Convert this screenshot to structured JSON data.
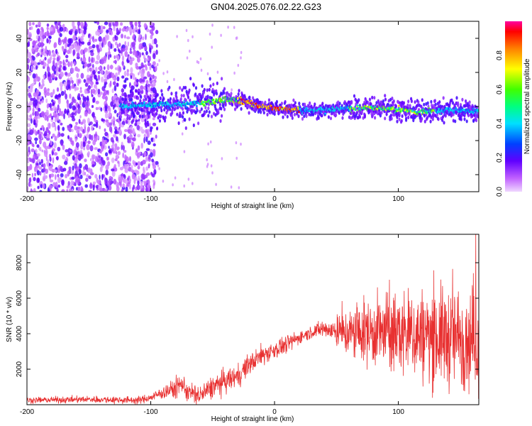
{
  "title": "GN04.2025.076.02.22.G23",
  "colors": {
    "snr_line": "#e83030",
    "scatter_noise": "#7a00e0",
    "frame": "#000000"
  },
  "chart_data": [
    {
      "type": "heatmap",
      "xlabel": "Height of straight line (km)",
      "ylabel": "Frequency (Hz)",
      "xlim": [
        -200,
        165
      ],
      "ylim": [
        -50,
        50
      ],
      "xticks": [
        -200,
        -100,
        0,
        100
      ],
      "yticks": [
        -40,
        -20,
        0,
        20,
        40
      ],
      "colorbar": {
        "label": "Normalized spectral amplitude",
        "range": [
          0,
          1
        ],
        "ticks": [
          "0.0",
          "0.2",
          "0.4",
          "0.6",
          "0.8"
        ],
        "tick_values": [
          0,
          0.2,
          0.4,
          0.6,
          0.8
        ],
        "colormap": "rainbow (magenta-blue-cyan-green-yellow-red)"
      },
      "ridge": {
        "points": [
          [
            -120,
            0
          ],
          [
            -100,
            1
          ],
          [
            -80,
            1
          ],
          [
            -60,
            2
          ],
          [
            -40,
            4
          ],
          [
            -25,
            3
          ],
          [
            -10,
            0
          ],
          [
            0,
            -1
          ],
          [
            20,
            -2
          ],
          [
            40,
            -2
          ],
          [
            60,
            -1
          ],
          [
            80,
            -1
          ],
          [
            100,
            -2
          ],
          [
            120,
            -3
          ],
          [
            140,
            -2
          ],
          [
            165,
            -3
          ]
        ],
        "peak_amplitude_range": [
          -30,
          20
        ]
      },
      "noise_region_xmax": -110
    },
    {
      "type": "line",
      "xlabel": "Height of straight line (km)",
      "ylabel": "SNR (10 * v/v)",
      "xlim": [
        -200,
        165
      ],
      "ylim": [
        0,
        9600
      ],
      "xticks": [
        -200,
        -100,
        0,
        100
      ],
      "yticks": [
        2000,
        4000,
        6000,
        8000
      ],
      "envelope": [
        [
          -200,
          250
        ],
        [
          -150,
          300
        ],
        [
          -110,
          250
        ],
        [
          -100,
          400
        ],
        [
          -90,
          700
        ],
        [
          -80,
          900
        ],
        [
          -75,
          1200
        ],
        [
          -70,
          700
        ],
        [
          -60,
          500
        ],
        [
          -50,
          1000
        ],
        [
          -40,
          1300
        ],
        [
          -30,
          1600
        ],
        [
          -20,
          2300
        ],
        [
          -10,
          2800
        ],
        [
          0,
          3100
        ],
        [
          10,
          3400
        ],
        [
          20,
          3800
        ],
        [
          30,
          4100
        ],
        [
          40,
          4300
        ],
        [
          50,
          4100
        ],
        [
          60,
          4000
        ],
        [
          80,
          4100
        ],
        [
          100,
          4000
        ],
        [
          120,
          3900
        ],
        [
          140,
          3800
        ],
        [
          165,
          3700
        ]
      ],
      "spread": [
        [
          -200,
          150
        ],
        [
          -100,
          200
        ],
        [
          -80,
          500
        ],
        [
          -40,
          600
        ],
        [
          0,
          500
        ],
        [
          30,
          300
        ],
        [
          50,
          700
        ],
        [
          60,
          1300
        ],
        [
          80,
          1800
        ],
        [
          100,
          2200
        ],
        [
          120,
          2400
        ],
        [
          140,
          2600
        ],
        [
          165,
          2600
        ]
      ]
    }
  ]
}
